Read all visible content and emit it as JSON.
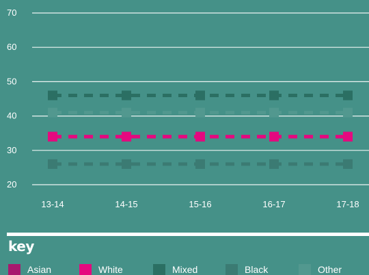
{
  "chart_data": {
    "type": "line",
    "categories": [
      "13-14",
      "14-15",
      "15-16",
      "16-17",
      "17-18"
    ],
    "ylim": [
      20,
      70
    ],
    "yticks": [
      20,
      30,
      40,
      50,
      60,
      70
    ],
    "grid": true,
    "line_style": "dashed",
    "legend_position": "bottom",
    "series": [
      {
        "name": "Asian",
        "color": "#a8196e",
        "values": [
          34,
          34,
          34,
          34,
          34
        ]
      },
      {
        "name": "White",
        "color": "#e5097f",
        "values": [
          34,
          34,
          34,
          34,
          34
        ]
      },
      {
        "name": "Mixed",
        "color": "#2b6f63",
        "values": [
          46,
          46,
          46,
          46,
          46
        ]
      },
      {
        "name": "Black",
        "color": "#3b7b73",
        "values": [
          26,
          26,
          26,
          26,
          26
        ]
      },
      {
        "name": "Other",
        "color": "#52988f",
        "values": [
          41,
          41,
          41,
          41,
          41
        ]
      }
    ]
  },
  "key": {
    "title": "key",
    "items": [
      {
        "label": "Asian",
        "color": "#a8196e"
      },
      {
        "label": "White",
        "color": "#e5097f"
      },
      {
        "label": "Mixed",
        "color": "#2b6f63"
      },
      {
        "label": "Black",
        "color": "#3b7b73"
      },
      {
        "label": "Other",
        "color": "#52988f"
      }
    ]
  }
}
